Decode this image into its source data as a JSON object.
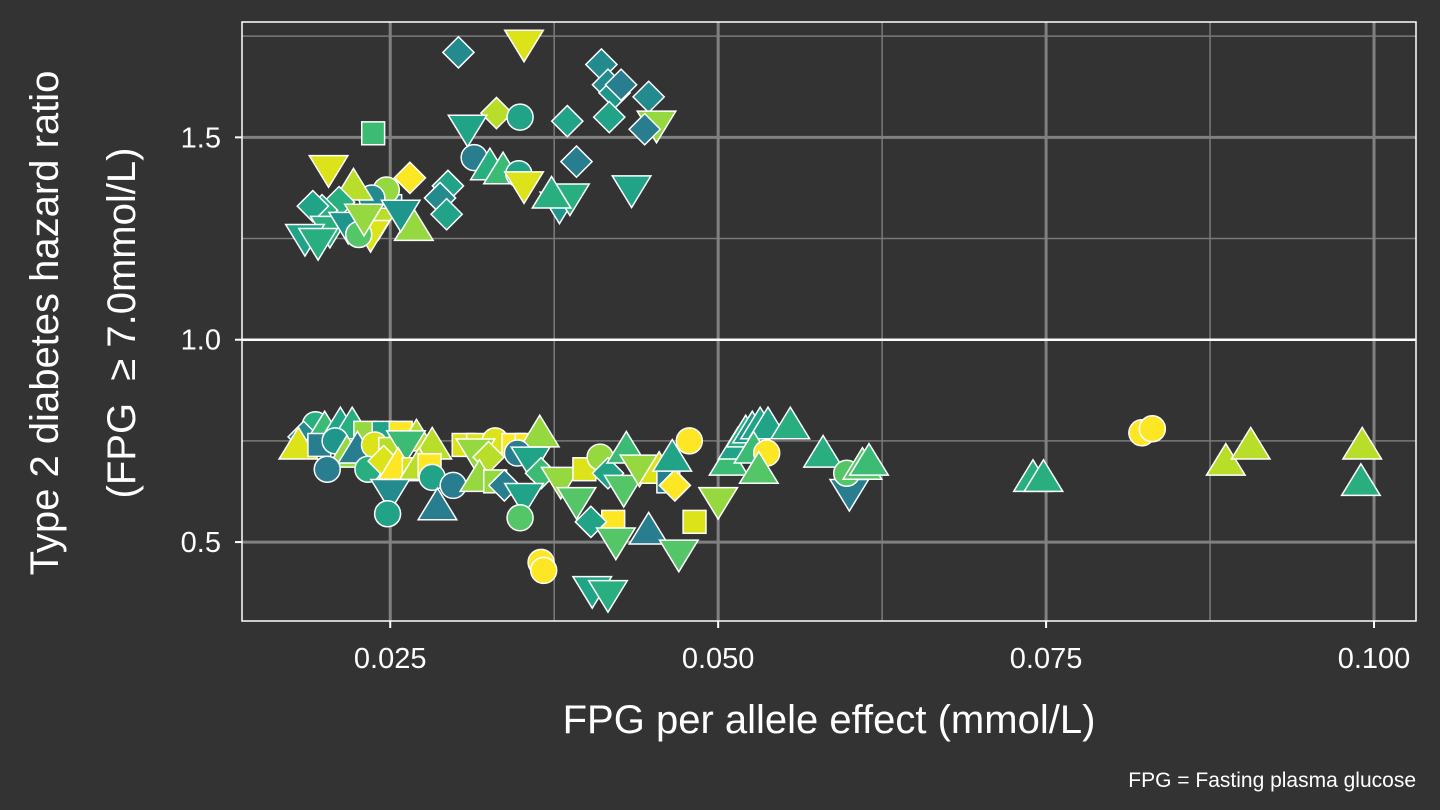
{
  "chart_data": {
    "type": "scatter",
    "xlabel": "FPG per allele effect (mmol/L)",
    "ylabel_line1": "Type 2 diabetes hazard ratio",
    "ylabel_line2": "(FPG  ≥ 7.0mmol/L)",
    "caption": "FPG = Fasting plasma glucose",
    "xlim": [
      0.0137,
      0.1032
    ],
    "ylim": [
      0.305,
      1.785
    ],
    "x_ticks": [
      0.025,
      0.05,
      0.075,
      0.1
    ],
    "x_tick_labels": [
      "0.025",
      "0.050",
      "0.075",
      "0.100"
    ],
    "y_ticks": [
      0.5,
      1.0,
      1.5
    ],
    "y_tick_labels": [
      "0.5",
      "1.0",
      "1.5"
    ],
    "x_minor_ticks": [
      0.0125,
      0.0375,
      0.0625,
      0.0875
    ],
    "y_minor_ticks": [
      0.75,
      1.25,
      1.75
    ],
    "reference_line_y": 1.0,
    "grid": true,
    "legend": "none",
    "background": "#333333",
    "panel_border": "#ffffff",
    "major_grid_color": "#808080",
    "minor_grid_color": "#7a7a7a",
    "reference_line_color": "#ffffff",
    "point_outline": "#ffffff",
    "palette": [
      "#fde725",
      "#dce319",
      "#b8de29",
      "#95d840",
      "#55c667",
      "#3cbb75",
      "#29af7f",
      "#20a386",
      "#1f968b",
      "#238a8d",
      "#287d8e",
      "#2d708e"
    ],
    "marker_shapes": [
      "circle",
      "square",
      "diamond",
      "triangle-up",
      "triangle-down"
    ],
    "points": [
      {
        "x": 0.0302,
        "y": 1.71,
        "shape": "diamond",
        "color": "#238a8d"
      },
      {
        "x": 0.0352,
        "y": 1.73,
        "shape": "triangle-down",
        "color": "#dce319"
      },
      {
        "x": 0.0411,
        "y": 1.68,
        "shape": "diamond",
        "color": "#238a8d"
      },
      {
        "x": 0.0416,
        "y": 1.63,
        "shape": "diamond",
        "color": "#238a8d"
      },
      {
        "x": 0.0421,
        "y": 1.61,
        "shape": "diamond",
        "color": "#1f968b"
      },
      {
        "x": 0.0426,
        "y": 1.63,
        "shape": "diamond",
        "color": "#287d8e"
      },
      {
        "x": 0.0447,
        "y": 1.6,
        "shape": "diamond",
        "color": "#238a8d"
      },
      {
        "x": 0.0453,
        "y": 1.53,
        "shape": "triangle-down",
        "color": "#95d840"
      },
      {
        "x": 0.0444,
        "y": 1.52,
        "shape": "diamond",
        "color": "#287d8e"
      },
      {
        "x": 0.0417,
        "y": 1.55,
        "shape": "diamond",
        "color": "#20a386"
      },
      {
        "x": 0.0392,
        "y": 1.44,
        "shape": "diamond",
        "color": "#287d8e"
      },
      {
        "x": 0.0385,
        "y": 1.54,
        "shape": "diamond",
        "color": "#20a386"
      },
      {
        "x": 0.0434,
        "y": 1.37,
        "shape": "triangle-down",
        "color": "#20a386"
      },
      {
        "x": 0.0237,
        "y": 1.51,
        "shape": "square",
        "color": "#3cbb75"
      },
      {
        "x": 0.0331,
        "y": 1.56,
        "shape": "diamond",
        "color": "#b8de29"
      },
      {
        "x": 0.0349,
        "y": 1.55,
        "shape": "circle",
        "color": "#20a386"
      },
      {
        "x": 0.0309,
        "y": 1.52,
        "shape": "triangle-down",
        "color": "#20a386"
      },
      {
        "x": 0.0314,
        "y": 1.45,
        "shape": "circle",
        "color": "#287d8e"
      },
      {
        "x": 0.0326,
        "y": 1.43,
        "shape": "triangle-up",
        "color": "#29af7f"
      },
      {
        "x": 0.0336,
        "y": 1.42,
        "shape": "triangle-up",
        "color": "#3cbb75"
      },
      {
        "x": 0.0348,
        "y": 1.41,
        "shape": "circle",
        "color": "#20a386"
      },
      {
        "x": 0.0352,
        "y": 1.38,
        "shape": "triangle-down",
        "color": "#dce319"
      },
      {
        "x": 0.0379,
        "y": 1.33,
        "shape": "triangle-down",
        "color": "#1f968b"
      },
      {
        "x": 0.0387,
        "y": 1.35,
        "shape": "triangle-down",
        "color": "#29af7f"
      },
      {
        "x": 0.0373,
        "y": 1.36,
        "shape": "triangle-up",
        "color": "#29af7f"
      },
      {
        "x": 0.0294,
        "y": 1.38,
        "shape": "diamond",
        "color": "#20a386"
      },
      {
        "x": 0.0288,
        "y": 1.35,
        "shape": "diamond",
        "color": "#238a8d"
      },
      {
        "x": 0.0293,
        "y": 1.31,
        "shape": "diamond",
        "color": "#20a386"
      },
      {
        "x": 0.0268,
        "y": 1.28,
        "shape": "triangle-up",
        "color": "#95d840"
      },
      {
        "x": 0.0265,
        "y": 1.4,
        "shape": "diamond",
        "color": "#fde725"
      },
      {
        "x": 0.025,
        "y": 1.33,
        "shape": "square",
        "color": "#287d8e"
      },
      {
        "x": 0.0247,
        "y": 1.37,
        "shape": "circle",
        "color": "#95d840"
      },
      {
        "x": 0.0236,
        "y": 1.35,
        "shape": "circle",
        "color": "#238a8d"
      },
      {
        "x": 0.0241,
        "y": 1.29,
        "shape": "triangle-down",
        "color": "#b8de29"
      },
      {
        "x": 0.0235,
        "y": 1.26,
        "shape": "triangle-down",
        "color": "#dce319"
      },
      {
        "x": 0.0222,
        "y": 1.38,
        "shape": "triangle-up",
        "color": "#b8de29"
      },
      {
        "x": 0.0203,
        "y": 1.42,
        "shape": "triangle-down",
        "color": "#dce319"
      },
      {
        "x": 0.0211,
        "y": 1.34,
        "shape": "diamond",
        "color": "#29af7f"
      },
      {
        "x": 0.0198,
        "y": 1.32,
        "shape": "diamond",
        "color": "#29af7f"
      },
      {
        "x": 0.0191,
        "y": 1.33,
        "shape": "diamond",
        "color": "#20a386"
      },
      {
        "x": 0.0204,
        "y": 1.27,
        "shape": "triangle-down",
        "color": "#29af7f"
      },
      {
        "x": 0.0218,
        "y": 1.28,
        "shape": "triangle-down",
        "color": "#1f968b"
      },
      {
        "x": 0.0226,
        "y": 1.26,
        "shape": "circle",
        "color": "#55c667"
      },
      {
        "x": 0.0185,
        "y": 1.25,
        "shape": "triangle-down",
        "color": "#20a386"
      },
      {
        "x": 0.0195,
        "y": 1.24,
        "shape": "triangle-down",
        "color": "#29af7f"
      },
      {
        "x": 0.023,
        "y": 1.3,
        "shape": "triangle-down",
        "color": "#95d840"
      },
      {
        "x": 0.0258,
        "y": 1.31,
        "shape": "triangle-down",
        "color": "#1f968b"
      },
      {
        "x": 0.0193,
        "y": 0.79,
        "shape": "circle",
        "color": "#29af7f"
      },
      {
        "x": 0.0184,
        "y": 0.76,
        "shape": "diamond",
        "color": "#238a8d"
      },
      {
        "x": 0.02,
        "y": 0.78,
        "shape": "triangle-up",
        "color": "#3cbb75"
      },
      {
        "x": 0.0212,
        "y": 0.79,
        "shape": "triangle-up",
        "color": "#20a386"
      },
      {
        "x": 0.0221,
        "y": 0.79,
        "shape": "triangle-up",
        "color": "#29af7f"
      },
      {
        "x": 0.0231,
        "y": 0.77,
        "shape": "square",
        "color": "#95d840"
      },
      {
        "x": 0.0245,
        "y": 0.77,
        "shape": "square",
        "color": "#20a386"
      },
      {
        "x": 0.0258,
        "y": 0.77,
        "shape": "square",
        "color": "#fde725"
      },
      {
        "x": 0.027,
        "y": 0.76,
        "shape": "triangle-up",
        "color": "#b8de29"
      },
      {
        "x": 0.0282,
        "y": 0.74,
        "shape": "triangle-up",
        "color": "#b8de29"
      },
      {
        "x": 0.0306,
        "y": 0.74,
        "shape": "square",
        "color": "#dce319"
      },
      {
        "x": 0.0317,
        "y": 0.74,
        "shape": "square",
        "color": "#dce319"
      },
      {
        "x": 0.033,
        "y": 0.75,
        "shape": "circle",
        "color": "#dce319"
      },
      {
        "x": 0.0344,
        "y": 0.74,
        "shape": "square",
        "color": "#fde725"
      },
      {
        "x": 0.0354,
        "y": 0.74,
        "shape": "square",
        "color": "#fde725"
      },
      {
        "x": 0.0364,
        "y": 0.77,
        "shape": "triangle-up",
        "color": "#95d840"
      },
      {
        "x": 0.018,
        "y": 0.74,
        "shape": "triangle-up",
        "color": "#dce319"
      },
      {
        "x": 0.0196,
        "y": 0.74,
        "shape": "square",
        "color": "#287d8e"
      },
      {
        "x": 0.0208,
        "y": 0.75,
        "shape": "circle",
        "color": "#1f968b"
      },
      {
        "x": 0.0217,
        "y": 0.72,
        "shape": "triangle-up",
        "color": "#95d840"
      },
      {
        "x": 0.0225,
        "y": 0.73,
        "shape": "triangle-up",
        "color": "#287d8e"
      },
      {
        "x": 0.0238,
        "y": 0.74,
        "shape": "circle",
        "color": "#dce319"
      },
      {
        "x": 0.025,
        "y": 0.73,
        "shape": "square",
        "color": "#b8de29"
      },
      {
        "x": 0.0262,
        "y": 0.74,
        "shape": "triangle-down",
        "color": "#3cbb75"
      },
      {
        "x": 0.0202,
        "y": 0.68,
        "shape": "circle",
        "color": "#287d8e"
      },
      {
        "x": 0.0233,
        "y": 0.68,
        "shape": "circle",
        "color": "#29af7f"
      },
      {
        "x": 0.0245,
        "y": 0.7,
        "shape": "diamond",
        "color": "#dce319"
      },
      {
        "x": 0.0256,
        "y": 0.69,
        "shape": "triangle-up",
        "color": "#fde725"
      },
      {
        "x": 0.0268,
        "y": 0.68,
        "shape": "square",
        "color": "#dce319"
      },
      {
        "x": 0.0272,
        "y": 0.69,
        "shape": "triangle-up",
        "color": "#b8de29"
      },
      {
        "x": 0.028,
        "y": 0.69,
        "shape": "square",
        "color": "#fde725"
      },
      {
        "x": 0.0282,
        "y": 0.66,
        "shape": "circle",
        "color": "#20a386"
      },
      {
        "x": 0.0298,
        "y": 0.64,
        "shape": "circle",
        "color": "#287d8e"
      },
      {
        "x": 0.0286,
        "y": 0.59,
        "shape": "triangle-up",
        "color": "#287d8e"
      },
      {
        "x": 0.025,
        "y": 0.62,
        "shape": "triangle-down",
        "color": "#238a8d"
      },
      {
        "x": 0.0248,
        "y": 0.57,
        "shape": "circle",
        "color": "#20a386"
      },
      {
        "x": 0.0315,
        "y": 0.72,
        "shape": "triangle-down",
        "color": "#95d840"
      },
      {
        "x": 0.0325,
        "y": 0.71,
        "shape": "diamond",
        "color": "#b8de29"
      },
      {
        "x": 0.0318,
        "y": 0.66,
        "shape": "triangle-up",
        "color": "#95d840"
      },
      {
        "x": 0.033,
        "y": 0.65,
        "shape": "square",
        "color": "#95d840"
      },
      {
        "x": 0.0337,
        "y": 0.64,
        "shape": "diamond",
        "color": "#287d8e"
      },
      {
        "x": 0.0347,
        "y": 0.72,
        "shape": "circle",
        "color": "#287d8e"
      },
      {
        "x": 0.0357,
        "y": 0.7,
        "shape": "triangle-down",
        "color": "#20a386"
      },
      {
        "x": 0.0365,
        "y": 0.67,
        "shape": "diamond",
        "color": "#3cbb75"
      },
      {
        "x": 0.0352,
        "y": 0.61,
        "shape": "triangle-down",
        "color": "#20a386"
      },
      {
        "x": 0.0349,
        "y": 0.56,
        "shape": "circle",
        "color": "#55c667"
      },
      {
        "x": 0.038,
        "y": 0.65,
        "shape": "triangle-down",
        "color": "#95d840"
      },
      {
        "x": 0.0392,
        "y": 0.6,
        "shape": "triangle-down",
        "color": "#55c667"
      },
      {
        "x": 0.0398,
        "y": 0.68,
        "shape": "square",
        "color": "#dce319"
      },
      {
        "x": 0.041,
        "y": 0.71,
        "shape": "circle",
        "color": "#95d840"
      },
      {
        "x": 0.0416,
        "y": 0.67,
        "shape": "diamond",
        "color": "#20a386"
      },
      {
        "x": 0.0428,
        "y": 0.63,
        "shape": "triangle-down",
        "color": "#55c667"
      },
      {
        "x": 0.043,
        "y": 0.73,
        "shape": "triangle-up",
        "color": "#3cbb75"
      },
      {
        "x": 0.044,
        "y": 0.68,
        "shape": "triangle-down",
        "color": "#95d840"
      },
      {
        "x": 0.0455,
        "y": 0.68,
        "shape": "triangle-up",
        "color": "#dce319"
      },
      {
        "x": 0.0462,
        "y": 0.65,
        "shape": "square",
        "color": "#287d8e"
      },
      {
        "x": 0.0467,
        "y": 0.64,
        "shape": "diamond",
        "color": "#fde725"
      },
      {
        "x": 0.0465,
        "y": 0.71,
        "shape": "triangle-up",
        "color": "#20a386"
      },
      {
        "x": 0.0478,
        "y": 0.75,
        "shape": "circle",
        "color": "#fde725"
      },
      {
        "x": 0.042,
        "y": 0.55,
        "shape": "square",
        "color": "#fde725"
      },
      {
        "x": 0.0403,
        "y": 0.55,
        "shape": "diamond",
        "color": "#20a386"
      },
      {
        "x": 0.0422,
        "y": 0.5,
        "shape": "triangle-down",
        "color": "#55c667"
      },
      {
        "x": 0.0447,
        "y": 0.53,
        "shape": "triangle-up",
        "color": "#287d8e"
      },
      {
        "x": 0.047,
        "y": 0.47,
        "shape": "triangle-down",
        "color": "#55c667"
      },
      {
        "x": 0.0482,
        "y": 0.55,
        "shape": "square",
        "color": "#dce319"
      },
      {
        "x": 0.0365,
        "y": 0.45,
        "shape": "circle",
        "color": "#fde725"
      },
      {
        "x": 0.0367,
        "y": 0.43,
        "shape": "circle",
        "color": "#fde725"
      },
      {
        "x": 0.0404,
        "y": 0.38,
        "shape": "triangle-down",
        "color": "#20a386"
      },
      {
        "x": 0.0416,
        "y": 0.37,
        "shape": "triangle-down",
        "color": "#29af7f"
      },
      {
        "x": 0.05,
        "y": 0.6,
        "shape": "triangle-down",
        "color": "#95d840"
      },
      {
        "x": 0.0508,
        "y": 0.7,
        "shape": "triangle-up",
        "color": "#3cbb75"
      },
      {
        "x": 0.0515,
        "y": 0.74,
        "shape": "triangle-up",
        "color": "#20a386"
      },
      {
        "x": 0.0521,
        "y": 0.77,
        "shape": "triangle-up",
        "color": "#29af7f"
      },
      {
        "x": 0.0526,
        "y": 0.78,
        "shape": "triangle-up",
        "color": "#1f968b"
      },
      {
        "x": 0.0532,
        "y": 0.79,
        "shape": "triangle-up",
        "color": "#20a386"
      },
      {
        "x": 0.0538,
        "y": 0.79,
        "shape": "triangle-up",
        "color": "#20a386"
      },
      {
        "x": 0.0555,
        "y": 0.79,
        "shape": "triangle-up",
        "color": "#29af7f"
      },
      {
        "x": 0.0527,
        "y": 0.73,
        "shape": "triangle-up",
        "color": "#3cbb75"
      },
      {
        "x": 0.0537,
        "y": 0.72,
        "shape": "circle",
        "color": "#fde725"
      },
      {
        "x": 0.0531,
        "y": 0.68,
        "shape": "triangle-up",
        "color": "#55c667"
      },
      {
        "x": 0.058,
        "y": 0.72,
        "shape": "triangle-up",
        "color": "#29af7f"
      },
      {
        "x": 0.06,
        "y": 0.62,
        "shape": "triangle-down",
        "color": "#287d8e"
      },
      {
        "x": 0.0598,
        "y": 0.67,
        "shape": "circle",
        "color": "#55c667"
      },
      {
        "x": 0.061,
        "y": 0.69,
        "shape": "triangle-up",
        "color": "#55c667"
      },
      {
        "x": 0.0615,
        "y": 0.7,
        "shape": "triangle-up",
        "color": "#3cbb75"
      },
      {
        "x": 0.074,
        "y": 0.66,
        "shape": "triangle-up",
        "color": "#29af7f"
      },
      {
        "x": 0.0748,
        "y": 0.66,
        "shape": "triangle-up",
        "color": "#29af7f"
      },
      {
        "x": 0.0823,
        "y": 0.77,
        "shape": "circle",
        "color": "#fde725"
      },
      {
        "x": 0.0831,
        "y": 0.78,
        "shape": "circle",
        "color": "#fde725"
      },
      {
        "x": 0.0887,
        "y": 0.7,
        "shape": "triangle-up",
        "color": "#b8de29"
      },
      {
        "x": 0.0906,
        "y": 0.74,
        "shape": "triangle-up",
        "color": "#b8de29"
      },
      {
        "x": 0.0991,
        "y": 0.74,
        "shape": "triangle-up",
        "color": "#b8de29"
      },
      {
        "x": 0.099,
        "y": 0.65,
        "shape": "triangle-up",
        "color": "#29af7f"
      }
    ]
  }
}
